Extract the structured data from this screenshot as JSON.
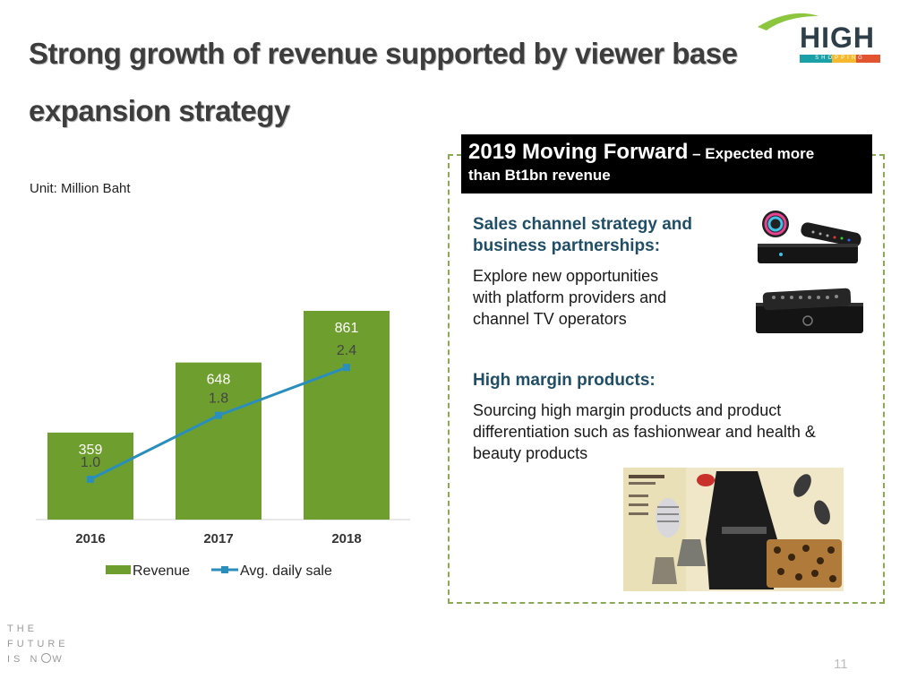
{
  "slide": {
    "title_line1": "Strong growth of revenue supported by viewer base",
    "title_line2": "expansion strategy",
    "page_number": "11"
  },
  "logo": {
    "text": "HIGH",
    "sub": "SHOPPING",
    "colors": {
      "swoosh": "#8cc63f",
      "text": "#2f3f4a",
      "bar_teal": "#1aa1a8",
      "bar_yellow": "#f4b92c",
      "bar_red": "#e2542f"
    }
  },
  "unit_label": "Unit: Million Baht",
  "chart_data": {
    "type": "bar",
    "categories": [
      "2016",
      "2017",
      "2018"
    ],
    "series": [
      {
        "name": "Revenue",
        "type": "bar",
        "values": [
          359,
          648,
          861
        ],
        "color": "#6e9f2e"
      },
      {
        "name": "Avg. daily sale",
        "type": "line",
        "values": [
          1.0,
          1.8,
          2.4
        ],
        "labels": [
          "1.0",
          "1.8",
          "2.4"
        ],
        "color": "#2a8ebd"
      }
    ],
    "bar_labels": [
      "359",
      "648",
      "861"
    ],
    "legend_position": "bottom",
    "grid": false
  },
  "panel": {
    "header_main": "2019 Moving Forward",
    "header_sub": " – Expected more",
    "header_line2": "than Bt1bn revenue",
    "section1_heading_line1": "Sales channel strategy and",
    "section1_heading_line2": "business partnerships:",
    "section1_body_line1": "Explore new opportunities",
    "section1_body_line2": "with platform providers and",
    "section1_body_line3": "channel TV operators",
    "section2_heading": "High margin products:",
    "section2_body_line1": "Sourcing high margin products and product",
    "section2_body_line2": "differentiation such as fashionwear and health &",
    "section2_body_line3": "beauty products"
  },
  "footer": {
    "line1": "THE",
    "line2": "FUTURE",
    "line3_pre": "IS N",
    "line3_post": "W"
  }
}
